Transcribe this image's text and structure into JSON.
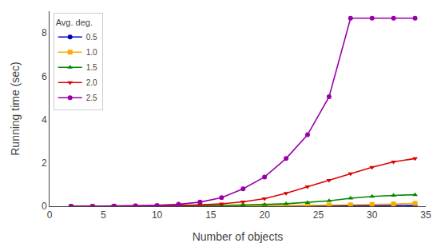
{
  "chart_data": {
    "type": "line",
    "xlabel": "Number of objects",
    "ylabel": "Running time (sec)",
    "xlim": [
      0,
      35
    ],
    "ylim": [
      0,
      9
    ],
    "xticks": [
      0,
      5,
      10,
      15,
      20,
      25,
      30,
      35
    ],
    "yticks": [
      0,
      2,
      4,
      6,
      8
    ],
    "grid": false,
    "legend": "upper left",
    "legend_title": "Avg. deg.",
    "x": [
      2,
      4,
      6,
      8,
      10,
      12,
      14,
      16,
      18,
      20,
      22,
      24,
      26,
      28,
      30,
      32,
      34
    ],
    "series": [
      {
        "name": "0.5",
        "color": "#0000cc",
        "marker": "circle",
        "values": [
          0.001,
          0.001,
          0.002,
          0.002,
          0.003,
          0.004,
          0.005,
          0.006,
          0.007,
          0.009,
          0.011,
          0.013,
          0.016,
          0.02,
          0.024,
          0.03,
          0.037
        ]
      },
      {
        "name": "1.0",
        "color": "#ffaa00",
        "marker": "square",
        "values": [
          0.001,
          0.002,
          0.003,
          0.004,
          0.006,
          0.008,
          0.011,
          0.014,
          0.018,
          0.023,
          0.03,
          0.038,
          0.049,
          0.063,
          0.081,
          0.104,
          0.133
        ]
      },
      {
        "name": "1.5",
        "color": "#008800",
        "marker": "triangle-up",
        "values": [
          0.001,
          0.002,
          0.004,
          0.006,
          0.01,
          0.015,
          0.023,
          0.035,
          0.052,
          0.078,
          0.115,
          0.17,
          0.25,
          0.37,
          0.45,
          0.5,
          0.53
        ]
      },
      {
        "name": "2.0",
        "color": "#dd0000",
        "marker": "triangle-down",
        "values": [
          0.001,
          0.003,
          0.006,
          0.011,
          0.02,
          0.036,
          0.064,
          0.113,
          0.2,
          0.35,
          0.6,
          0.9,
          1.2,
          1.5,
          1.8,
          2.05,
          2.2
        ]
      },
      {
        "name": "2.5",
        "color": "#9900aa",
        "marker": "circle",
        "values": [
          0.001,
          0.003,
          0.008,
          0.018,
          0.04,
          0.088,
          0.19,
          0.4,
          0.8,
          1.35,
          2.2,
          3.3,
          5.05,
          8.68,
          8.68,
          8.68,
          8.68
        ]
      }
    ]
  }
}
